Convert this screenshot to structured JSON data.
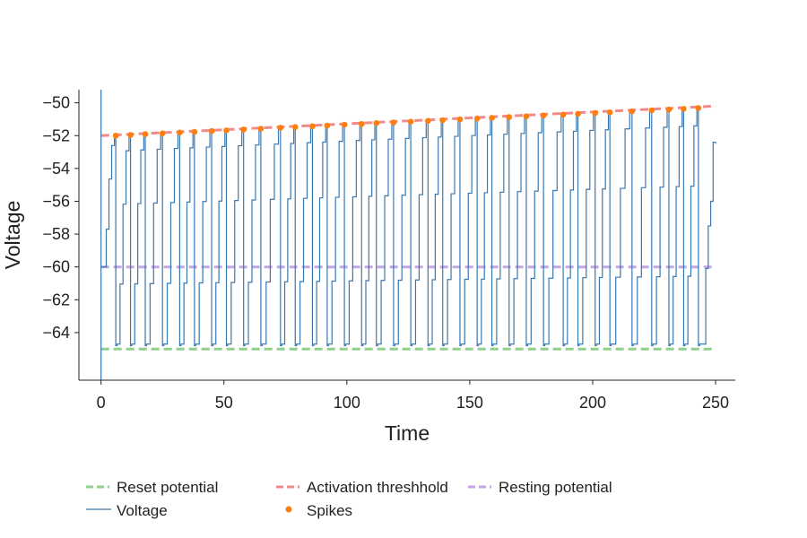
{
  "chart_data": {
    "type": "line",
    "xlabel": "Time",
    "ylabel": "Voltage",
    "xlim": [
      -9,
      258
    ],
    "ylim": [
      -66.9,
      -49.2
    ],
    "xticks": [
      0,
      50,
      100,
      150,
      200,
      250
    ],
    "yticks": [
      -64,
      -62,
      -60,
      -58,
      -56,
      -54,
      -52,
      -50
    ],
    "grid": false,
    "legend_position": "bottom",
    "reference_lines": [
      {
        "name": "Reset potential",
        "value": -65,
        "color": "#8fd18a",
        "style": "dashed"
      },
      {
        "name": "Activation threshhold",
        "from": -52,
        "to": -50.2,
        "color": "#f08a8a",
        "style": "dashed"
      },
      {
        "name": "Resting potential",
        "value": -60,
        "color": "#c3a6e6",
        "style": "dashed"
      }
    ],
    "series": [
      {
        "name": "Voltage",
        "kind": "step-line",
        "color": "#3b78b0",
        "start_time": 0,
        "start_voltage": -60,
        "end_time": 250,
        "end_voltage": -52.5,
        "min_voltage": -64.7
      },
      {
        "name": "Spikes",
        "kind": "scatter",
        "color": "#ff7f0e",
        "x": [
          6,
          12,
          18,
          25,
          32,
          38,
          45,
          51,
          58,
          65,
          73,
          79,
          86,
          92,
          99,
          106,
          112,
          119,
          126,
          133,
          139,
          146,
          153,
          159,
          166,
          173,
          180,
          188,
          194,
          201,
          207,
          216,
          224,
          231,
          237,
          243
        ],
        "y": [
          -52,
          -51.96,
          -51.91,
          -51.86,
          -51.81,
          -51.77,
          -51.72,
          -51.68,
          -51.63,
          -51.58,
          -51.52,
          -51.48,
          -51.43,
          -51.39,
          -51.34,
          -51.29,
          -51.24,
          -51.2,
          -51.15,
          -51.1,
          -51.06,
          -51.01,
          -50.96,
          -50.92,
          -50.87,
          -50.82,
          -50.77,
          -50.72,
          -50.67,
          -50.62,
          -50.58,
          -50.52,
          -50.46,
          -50.41,
          -50.37,
          -50.32
        ]
      }
    ]
  }
}
